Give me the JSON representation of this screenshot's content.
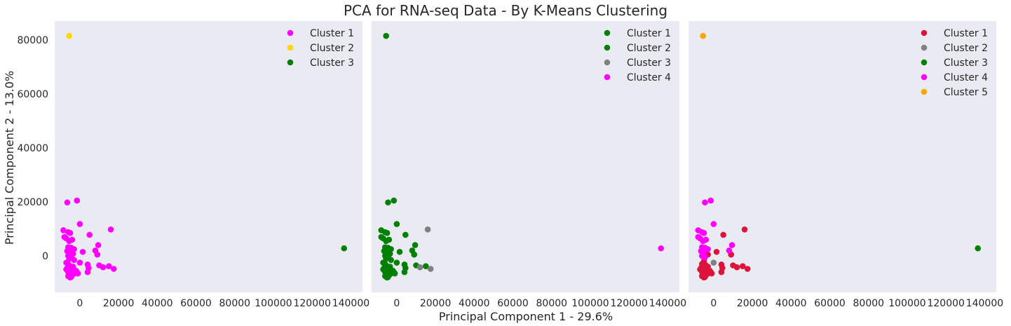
{
  "title": "PCA for RNA-seq Data - By K-Means Clustering",
  "xlabel": "Principal Component 1 - 29.6%",
  "ylabel": "Principal Component 2 - 13.0%",
  "chart_data": [
    {
      "type": "scatter",
      "xlim": [
        -13000,
        146000
      ],
      "ylim": [
        -13500,
        87000
      ],
      "xticks": [
        0,
        20000,
        40000,
        60000,
        80000,
        100000,
        120000,
        140000
      ],
      "yticks": [
        0,
        20000,
        40000,
        60000,
        80000
      ],
      "grid": false,
      "legend_position": "top-right",
      "series": [
        {
          "name": "Cluster 1",
          "color": "#ff00ff",
          "points": [
            [
              -6500,
              19800
            ],
            [
              -1500,
              20500
            ],
            [
              0,
              11800
            ],
            [
              16000,
              9800
            ],
            [
              -8500,
              9500
            ],
            [
              -6000,
              8800
            ],
            [
              -5000,
              8500
            ],
            [
              5000,
              7800
            ],
            [
              -8000,
              7000
            ],
            [
              -7000,
              6500
            ],
            [
              -4000,
              6000
            ],
            [
              -5500,
              5500
            ],
            [
              9500,
              4000
            ],
            [
              -6000,
              3200
            ],
            [
              -4500,
              3000
            ],
            [
              -3000,
              2500
            ],
            [
              8000,
              2000
            ],
            [
              -6500,
              1800
            ],
            [
              1500,
              1500
            ],
            [
              -5000,
              1200
            ],
            [
              -3500,
              800
            ],
            [
              9000,
              500
            ],
            [
              -6000,
              0
            ],
            [
              -4500,
              -500
            ],
            [
              -5500,
              -1000
            ],
            [
              -3000,
              -1500
            ],
            [
              -7000,
              -2500
            ],
            [
              0,
              -2500
            ],
            [
              -6000,
              -3000
            ],
            [
              4000,
              -3200
            ],
            [
              10000,
              -3500
            ],
            [
              -5000,
              -3800
            ],
            [
              15000,
              -3800
            ],
            [
              -3500,
              -4000
            ],
            [
              12000,
              -4200
            ],
            [
              -6500,
              -4500
            ],
            [
              4500,
              -4500
            ],
            [
              17500,
              -4800
            ],
            [
              -7000,
              -5000
            ],
            [
              -5000,
              -5200
            ],
            [
              -4000,
              -5500
            ],
            [
              -2000,
              -5500
            ],
            [
              -6000,
              -6000
            ],
            [
              -1500,
              -6000
            ],
            [
              4000,
              -6000
            ],
            [
              -5500,
              -6500
            ],
            [
              -3000,
              -6500
            ],
            [
              -1000,
              -6500
            ],
            [
              -5000,
              -7000
            ],
            [
              -4000,
              -7200
            ],
            [
              -6000,
              -7500
            ],
            [
              -4500,
              -7800
            ],
            [
              -5000,
              -8000
            ]
          ]
        },
        {
          "name": "Cluster 2",
          "color": "#ffd700",
          "points": [
            [
              -5500,
              81500
            ]
          ]
        },
        {
          "name": "Cluster 3",
          "color": "#008000",
          "points": [
            [
              136500,
              2800
            ]
          ]
        }
      ]
    },
    {
      "type": "scatter",
      "xlim": [
        -13000,
        146000
      ],
      "ylim": [
        -13500,
        87000
      ],
      "xticks": [
        0,
        20000,
        40000,
        60000,
        80000,
        100000,
        120000,
        140000
      ],
      "yticks": [
        0,
        20000,
        40000,
        60000,
        80000
      ],
      "grid": false,
      "legend_position": "top-right",
      "series": [
        {
          "name": "Cluster 1",
          "color": "#008000",
          "points": [
            [
              -5500,
              81500
            ]
          ]
        },
        {
          "name": "Cluster 2",
          "color": "#008000",
          "points": [
            [
              -4500,
              19800
            ],
            [
              -1500,
              20500
            ],
            [
              0,
              11800
            ],
            [
              -8000,
              9500
            ],
            [
              -6000,
              8800
            ],
            [
              -5000,
              8500
            ],
            [
              4500,
              7800
            ],
            [
              -8000,
              7000
            ],
            [
              -7000,
              6500
            ],
            [
              -4000,
              6000
            ],
            [
              -5500,
              5500
            ],
            [
              9500,
              4000
            ],
            [
              -6000,
              3200
            ],
            [
              -4500,
              3000
            ],
            [
              -3000,
              2500
            ],
            [
              8000,
              2000
            ],
            [
              -6500,
              1800
            ],
            [
              1500,
              1500
            ],
            [
              -5000,
              1200
            ],
            [
              -3500,
              800
            ],
            [
              9000,
              500
            ],
            [
              -6000,
              0
            ],
            [
              -4500,
              -500
            ],
            [
              -5500,
              -1000
            ],
            [
              -3000,
              -1500
            ],
            [
              -7000,
              -2500
            ],
            [
              0,
              -2500
            ],
            [
              -6000,
              -3000
            ],
            [
              4000,
              -3200
            ],
            [
              10000,
              -3500
            ],
            [
              -5000,
              -3800
            ],
            [
              15000,
              -3800
            ],
            [
              -3500,
              -4000
            ],
            [
              -6500,
              -4500
            ],
            [
              4500,
              -4500
            ],
            [
              -7000,
              -5000
            ],
            [
              -5000,
              -5200
            ],
            [
              -4000,
              -5500
            ],
            [
              -2000,
              -5500
            ],
            [
              -6000,
              -6000
            ],
            [
              -1500,
              -6000
            ],
            [
              4000,
              -6000
            ],
            [
              -5500,
              -6500
            ],
            [
              -3000,
              -6500
            ],
            [
              -1000,
              -6500
            ],
            [
              -5000,
              -7000
            ],
            [
              -4000,
              -7200
            ],
            [
              -6000,
              -7500
            ],
            [
              -4500,
              -7800
            ],
            [
              -5000,
              -8000
            ]
          ]
        },
        {
          "name": "Cluster 3",
          "color": "#808080",
          "points": [
            [
              16000,
              9800
            ],
            [
              12000,
              -4200
            ],
            [
              17500,
              -4800
            ]
          ]
        },
        {
          "name": "Cluster 4",
          "color": "#ff00ff",
          "points": [
            [
              136500,
              2800
            ]
          ]
        }
      ]
    },
    {
      "type": "scatter",
      "xlim": [
        -13000,
        146000
      ],
      "ylim": [
        -13500,
        87000
      ],
      "xticks": [
        0,
        20000,
        40000,
        60000,
        80000,
        100000,
        120000,
        140000
      ],
      "yticks": [
        0,
        20000,
        40000,
        60000,
        80000
      ],
      "grid": false,
      "legend_position": "top-right",
      "series": [
        {
          "name": "Cluster 1",
          "color": "#dc143c",
          "points": [
            [
              16000,
              9800
            ],
            [
              5000,
              7800
            ],
            [
              1500,
              1500
            ],
            [
              -3000,
              500
            ],
            [
              9000,
              500
            ],
            [
              -5000,
              -2000
            ],
            [
              -6000,
              -3000
            ],
            [
              4000,
              -3200
            ],
            [
              10000,
              -3500
            ],
            [
              -4000,
              -3500
            ],
            [
              15000,
              -3800
            ],
            [
              -3000,
              -4000
            ],
            [
              12000,
              -4200
            ],
            [
              -6500,
              -4500
            ],
            [
              4500,
              -4500
            ],
            [
              17500,
              -4800
            ],
            [
              -7000,
              -5000
            ],
            [
              -5000,
              -5200
            ],
            [
              -4000,
              -5500
            ],
            [
              -2000,
              -5500
            ],
            [
              -6000,
              -6000
            ],
            [
              -1500,
              -6000
            ],
            [
              4000,
              -6000
            ],
            [
              -5500,
              -6500
            ],
            [
              -3000,
              -6500
            ],
            [
              -1000,
              -6500
            ],
            [
              -5000,
              -7000
            ],
            [
              -4000,
              -7200
            ],
            [
              -6000,
              -7500
            ],
            [
              -4500,
              -7800
            ],
            [
              -5000,
              -8000
            ]
          ]
        },
        {
          "name": "Cluster 2",
          "color": "#808080",
          "points": [
            [
              0,
              -2500
            ]
          ]
        },
        {
          "name": "Cluster 3",
          "color": "#008000",
          "points": [
            [
              136500,
              2800
            ]
          ]
        },
        {
          "name": "Cluster 4",
          "color": "#ff00ff",
          "points": [
            [
              -4500,
              19800
            ],
            [
              -1500,
              20500
            ],
            [
              0,
              11800
            ],
            [
              -8000,
              9500
            ],
            [
              -6000,
              8800
            ],
            [
              -5000,
              8500
            ],
            [
              -8000,
              7000
            ],
            [
              -7000,
              6500
            ],
            [
              -4000,
              6000
            ],
            [
              -5500,
              5500
            ],
            [
              9500,
              4000
            ],
            [
              -6000,
              3200
            ],
            [
              -4500,
              3000
            ],
            [
              -3000,
              2500
            ],
            [
              8000,
              2000
            ],
            [
              -6500,
              1800
            ],
            [
              -5000,
              1200
            ],
            [
              -6000,
              0
            ],
            [
              -4500,
              -500
            ]
          ]
        },
        {
          "name": "Cluster 5",
          "color": "#ffa500",
          "points": [
            [
              -5500,
              81500
            ]
          ]
        }
      ]
    }
  ]
}
